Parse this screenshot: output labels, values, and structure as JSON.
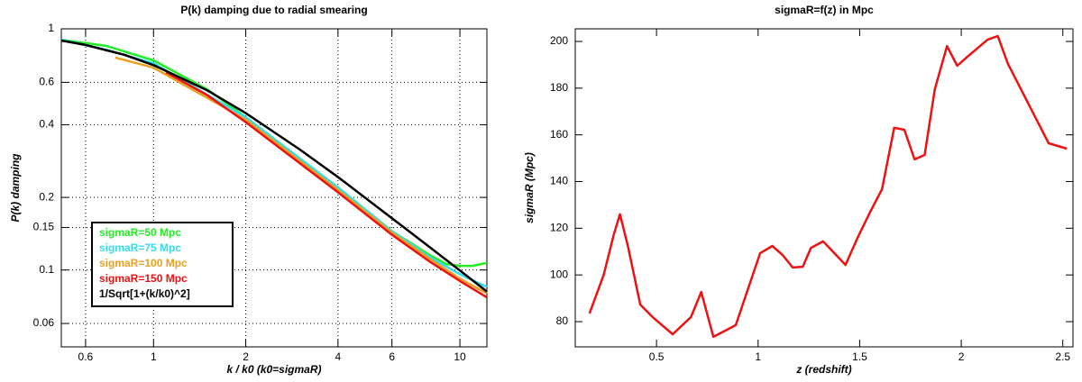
{
  "chart_data": [
    {
      "type": "line",
      "title": "P(k) damping due to radial smearing",
      "xlabel": "k / k0  (k0=sigmaR)",
      "ylabel": "P(k) damping",
      "xlog": true,
      "ylog": true,
      "grid": true,
      "legend": "lower left",
      "xlim": [
        0.5,
        12.25
      ],
      "ylim": [
        0.048,
        1
      ],
      "xticks": [
        0.6,
        1,
        2,
        4,
        6,
        10
      ],
      "yticks": [
        0.06,
        0.1,
        0.15,
        0.2,
        0.4,
        0.6,
        1
      ],
      "series": [
        {
          "name": "sigmaR=50 Mpc",
          "color": "#22ee22",
          "x": [
            0.5,
            0.7,
            1,
            1.5,
            2,
            3,
            4,
            6,
            8,
            9,
            10,
            11,
            12.25
          ],
          "values": [
            0.9,
            0.85,
            0.74,
            0.56,
            0.43,
            0.29,
            0.22,
            0.145,
            0.115,
            0.106,
            0.104,
            0.104,
            0.107
          ]
        },
        {
          "name": "sigmaR=75 Mpc",
          "color": "#33ddee",
          "x": [
            0.5,
            0.7,
            1,
            2,
            4,
            6,
            8,
            10,
            12.25
          ],
          "values": [
            0.9,
            0.82,
            0.72,
            0.43,
            0.22,
            0.145,
            0.113,
            0.096,
            0.085
          ]
        },
        {
          "name": "sigmaR=100 Mpc",
          "color": "#e8a020",
          "x": [
            0.75,
            1,
            2,
            4,
            6,
            8,
            10,
            12.25
          ],
          "values": [
            0.76,
            0.69,
            0.42,
            0.215,
            0.143,
            0.111,
            0.092,
            0.08
          ]
        },
        {
          "name": "sigmaR=150 Mpc",
          "color": "#ee1111",
          "x": [
            1.1,
            1.5,
            2,
            4,
            6,
            8,
            10,
            12.25
          ],
          "values": [
            0.66,
            0.53,
            0.41,
            0.21,
            0.14,
            0.108,
            0.09,
            0.077
          ]
        },
        {
          "name": "1/Sqrt[1+(k/k0)^2]",
          "color": "#000000",
          "x": [
            0.5,
            0.6,
            0.8,
            1,
            1.5,
            2,
            3,
            4,
            6,
            8,
            10,
            12.25
          ],
          "values": [
            0.894,
            0.857,
            0.781,
            0.707,
            0.555,
            0.447,
            0.316,
            0.243,
            0.164,
            0.124,
            0.0995,
            0.0814
          ]
        }
      ]
    },
    {
      "type": "line",
      "title": "sigmaR=f(z) in Mpc",
      "xlabel": "z (redshift)",
      "ylabel": "sigmaR (Mpc)",
      "xlog": false,
      "ylog": false,
      "grid": false,
      "xlim": [
        0.1,
        2.55
      ],
      "ylim": [
        69.2,
        205.4
      ],
      "xticks": [
        0.5,
        1,
        1.5,
        2,
        2.5
      ],
      "yticks": [
        80,
        100,
        120,
        140,
        160,
        180,
        200
      ],
      "series": [
        {
          "color": "#ee1111",
          "x": [
            0.17,
            0.24,
            0.29,
            0.32,
            0.36,
            0.42,
            0.48,
            0.58,
            0.67,
            0.72,
            0.78,
            0.89,
            1.01,
            1.07,
            1.12,
            1.17,
            1.22,
            1.26,
            1.32,
            1.43,
            1.49,
            1.55,
            1.61,
            1.67,
            1.72,
            1.77,
            1.82,
            1.87,
            1.93,
            1.98,
            2.03,
            2.13,
            2.18,
            2.23,
            2.43,
            2.52
          ],
          "values": [
            83.5,
            100,
            117.4,
            126,
            112,
            87.3,
            82,
            74.6,
            82,
            92.7,
            73.5,
            78.5,
            109.3,
            112.4,
            108.6,
            103.2,
            103.5,
            111.6,
            114.4,
            104.3,
            116,
            126.7,
            136.7,
            163,
            162.2,
            149.5,
            151.4,
            179.6,
            198,
            189.6,
            193.4,
            200.8,
            202.3,
            190.4,
            156.4,
            154.1
          ]
        }
      ]
    }
  ]
}
